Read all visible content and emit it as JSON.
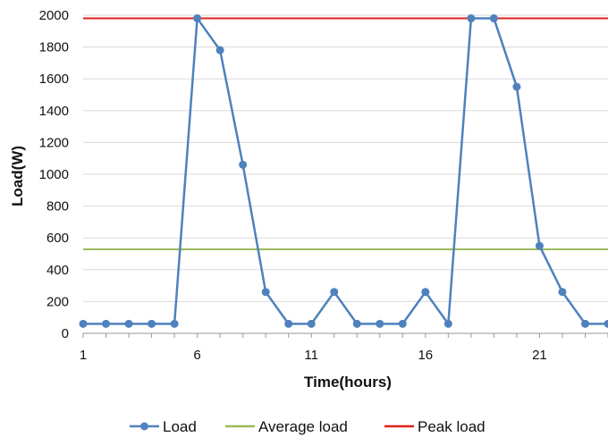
{
  "chart_data": {
    "type": "line",
    "title": "",
    "xlabel": "Time(hours)",
    "ylabel": "Load(W)",
    "x": [
      1,
      2,
      3,
      4,
      5,
      6,
      7,
      8,
      9,
      10,
      11,
      12,
      13,
      14,
      15,
      16,
      17,
      18,
      19,
      20,
      21,
      22,
      23,
      24
    ],
    "x_ticks": [
      1,
      6,
      11,
      16,
      21
    ],
    "xlim": [
      1,
      24
    ],
    "ylim": [
      0,
      2000
    ],
    "y_ticks": [
      0,
      200,
      400,
      600,
      800,
      1000,
      1200,
      1400,
      1600,
      1800,
      2000
    ],
    "grid": "horizontal",
    "legend_position": "bottom",
    "series": [
      {
        "name": "Load",
        "color": "#4f81bd",
        "marker": "circle",
        "values": [
          60,
          60,
          60,
          60,
          60,
          1980,
          1780,
          1060,
          260,
          60,
          60,
          260,
          60,
          60,
          60,
          260,
          60,
          1980,
          1980,
          1550,
          550,
          260,
          60,
          60
        ]
      },
      {
        "name": "Average load",
        "color": "#9bbb59",
        "marker": "none",
        "values": [
          528,
          528,
          528,
          528,
          528,
          528,
          528,
          528,
          528,
          528,
          528,
          528,
          528,
          528,
          528,
          528,
          528,
          528,
          528,
          528,
          528,
          528,
          528,
          528
        ]
      },
      {
        "name": "Peak load",
        "color": "#e3201b",
        "marker": "none",
        "values": [
          1980,
          1980,
          1980,
          1980,
          1980,
          1980,
          1980,
          1980,
          1980,
          1980,
          1980,
          1980,
          1980,
          1980,
          1980,
          1980,
          1980,
          1980,
          1980,
          1980,
          1980,
          1980,
          1980,
          1980
        ]
      }
    ]
  }
}
